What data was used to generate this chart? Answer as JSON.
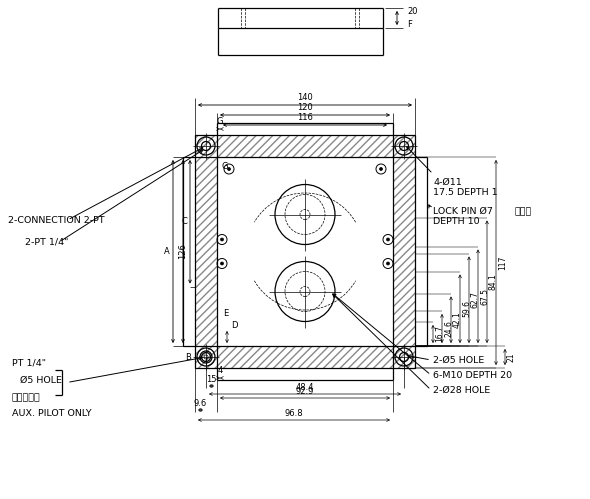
{
  "bg_color": "#ffffff",
  "line_color": "#000000",
  "thin_lw": 0.5,
  "medium_lw": 0.9,
  "thick_lw": 1.3,
  "fs_small": 6.0,
  "fs_med": 6.8,
  "fs_large": 7.5,
  "annotations": {
    "dim_140": "140",
    "dim_120": "120",
    "dim_116": "116",
    "dim_126": "126",
    "dim_4phi11": "4-Ø11\n17.5 DEPTH 1",
    "lock_pin": "LOCK PIN Ø7\nDEPTH 10",
    "gudai": "固定税",
    "dim_16_7": "16.7",
    "dim_24_6": "24.6",
    "dim_42_1": "42.1",
    "dim_59_6": "59.6",
    "dim_62_7": "62.7",
    "dim_67_5": "67.5",
    "dim_84_1": "84.1",
    "dim_117": "117",
    "dim_21": "21",
    "dim_4": "4",
    "dim_15": "15",
    "dim_48_4": "48.4",
    "dim_92_9": "92.9",
    "dim_9_6": "9.6",
    "dim_96_8": "96.8",
    "dim_2phi5": "2-Ø5 HOLE",
    "dim_6m10": "6-M10 DEPTH 20",
    "dim_2phi28": "2-Ø28 HOLE",
    "label_pt14": "PT 1/4\"",
    "label_phi5": "Ø5 HOLE",
    "label_aux": "輔助引導孔",
    "label_aux_en": "AUX. PILOT ONLY",
    "label_conn": "2-CONNECTION 2-PT",
    "label_2pt14": "2-PT 1/4\"",
    "label_A": "A",
    "label_B": "B",
    "label_C": "C",
    "label_D": "D",
    "label_E": "E",
    "label_G": "G",
    "label_F": "F",
    "dim_20": "20"
  }
}
